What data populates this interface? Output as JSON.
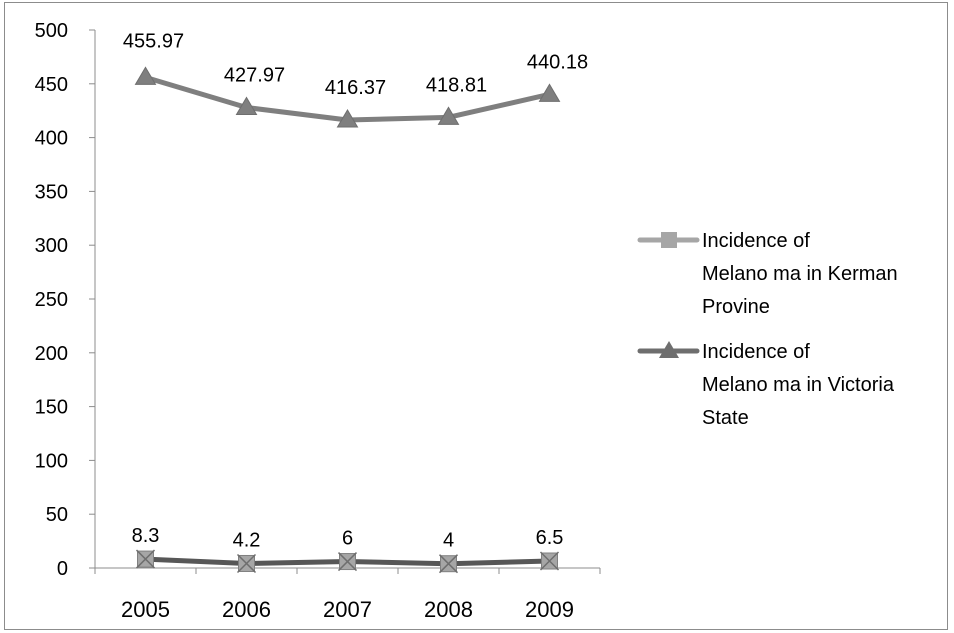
{
  "chart_data": {
    "type": "line",
    "categories": [
      "2005",
      "2006",
      "2007",
      "2008",
      "2009"
    ],
    "ylim": [
      0,
      500
    ],
    "yticks": [
      0,
      50,
      100,
      150,
      200,
      250,
      300,
      350,
      400,
      450,
      500
    ],
    "grid": false,
    "legend_position": "right",
    "series": [
      {
        "name": "Incidence of Melanoma in Kerman Provine",
        "name_lines": [
          "Incidence of",
          "Melano ma in Kerman",
          "Provine"
        ],
        "values": [
          8.3,
          4.2,
          6,
          4,
          6.5
        ],
        "labels": [
          "8.3",
          "4.2",
          "6",
          "4",
          "6.5"
        ],
        "marker": "square",
        "line_color": "#575757",
        "marker_color": "#a6a6a6",
        "legend_color": "#a6a6a6"
      },
      {
        "name": "Incidence of Melanoma in Victoria State",
        "name_lines": [
          "Incidence of",
          "Melano ma in Victoria",
          "State"
        ],
        "values": [
          455.97,
          427.97,
          416.37,
          418.81,
          440.18
        ],
        "labels": [
          "455.97",
          "427.97",
          "416.37",
          "418.81",
          "440.18"
        ],
        "marker": "triangle",
        "line_color": "#7f7f7f",
        "marker_color": "#7f7f7f",
        "legend_color": "#6e6e6e"
      }
    ]
  }
}
